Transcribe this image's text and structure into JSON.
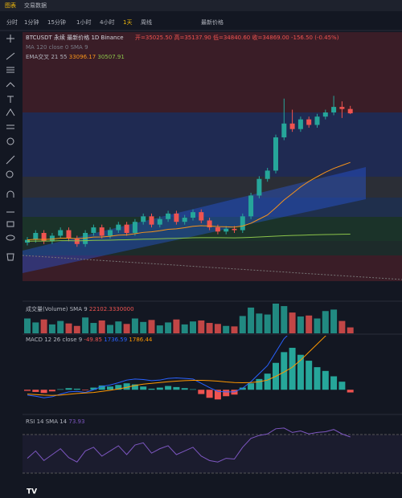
{
  "tabs": [
    "图表",
    "交易数据"
  ],
  "toolbar": [
    "分时",
    "1分钟",
    "15分钟",
    "1小时",
    "4小时",
    "1天",
    "周线"
  ],
  "price_source": "最新价格",
  "header": {
    "symbol": "BTCUSDT 永续 最新价格 1D Binance",
    "ohlc": "开=35025.50 高=35137.90 低=34840.60 收=34869.00 -156.50 (-0.45%)",
    "ma": "MA 120 close 0 SMA 9",
    "ema": "EMA交叉 21 55"
  },
  "chart_data": {
    "type": "candlestick",
    "categories": [
      null,
      null,
      null,
      null,
      null,
      null,
      null,
      null,
      null,
      null,
      null,
      null,
      null,
      null,
      null,
      null,
      null,
      null,
      null,
      null,
      null,
      null,
      null,
      null,
      null,
      null,
      null,
      null,
      null,
      null,
      null,
      null,
      null,
      null,
      null,
      null,
      null,
      null,
      null,
      null
    ],
    "open": [
      30200,
      30300,
      30550,
      30250,
      30450,
      30650,
      30350,
      30150,
      30550,
      30750,
      30450,
      30650,
      30850,
      30550,
      30950,
      31150,
      30850,
      31050,
      31250,
      30950,
      31100,
      31300,
      31000,
      30750,
      30600,
      30700,
      30650,
      31150,
      31900,
      32500,
      32800,
      34000,
      34500,
      34300,
      34650,
      34450,
      34750,
      34900,
      35100,
      35025.5
    ],
    "high": [
      30400,
      30650,
      30650,
      30550,
      30750,
      30750,
      30450,
      30650,
      30850,
      30850,
      30750,
      30950,
      30950,
      31050,
      31250,
      31250,
      31150,
      31350,
      31350,
      31200,
      31400,
      31400,
      31100,
      30850,
      30800,
      30800,
      31250,
      32000,
      32600,
      32900,
      34100,
      35400,
      35000,
      34750,
      34750,
      34850,
      35000,
      35500,
      35300,
      35137.9
    ],
    "low": [
      30100,
      30200,
      30150,
      30150,
      30350,
      30250,
      30050,
      30050,
      30450,
      30350,
      30350,
      30550,
      30450,
      30450,
      30850,
      30750,
      30750,
      30950,
      30850,
      30850,
      31000,
      30900,
      30650,
      30500,
      30500,
      30550,
      30550,
      31050,
      31800,
      32400,
      32700,
      33900,
      34200,
      34200,
      34350,
      34350,
      34650,
      34800,
      34700,
      34840.6
    ],
    "close": [
      30300,
      30550,
      30250,
      30450,
      30650,
      30350,
      30150,
      30550,
      30750,
      30450,
      30650,
      30850,
      30550,
      30950,
      31150,
      30850,
      31050,
      31250,
      30950,
      31100,
      31300,
      31000,
      30750,
      30600,
      30700,
      30650,
      31150,
      31900,
      32500,
      32800,
      34000,
      34500,
      34300,
      34650,
      34450,
      34750,
      34900,
      35100,
      35025,
      34869
    ],
    "up_color": "#26a69a",
    "down_color": "#ef5350",
    "ylim": [
      28810,
      37800
    ],
    "series": [
      {
        "color": "#f7931a",
        "values": [
          30300,
          30320,
          30315,
          30330,
          30360,
          30360,
          30345,
          30365,
          30400,
          30405,
          30430,
          30470,
          30480,
          30520,
          30570,
          30590,
          30630,
          30680,
          30700,
          30740,
          30790,
          30810,
          30800,
          30780,
          30770,
          30760,
          30800,
          30900,
          31050,
          31200,
          31460,
          31740,
          31970,
          32210,
          32410,
          32580,
          32740,
          32880,
          32990,
          33096.17
        ]
      },
      {
        "color": "#8bc34a",
        "values": [
          30250,
          30255,
          30255,
          30260,
          30270,
          30270,
          30265,
          30270,
          30280,
          30285,
          30290,
          30300,
          30305,
          30315,
          30325,
          30330,
          30340,
          30350,
          30355,
          30365,
          30375,
          30380,
          30380,
          30378,
          30376,
          30374,
          30380,
          30392,
          30404,
          30418,
          30434,
          30448,
          30458,
          30468,
          30476,
          30484,
          30491,
          30497,
          30502,
          30507.91
        ]
      }
    ],
    "volume": {
      "label": "成交量(Volume) SMA 9",
      "sma_label": "22102.3330000",
      "ylim": [
        0,
        60000
      ],
      "values": [
        30000,
        22000,
        28000,
        18000,
        25000,
        20000,
        15000,
        32000,
        21000,
        26000,
        17000,
        24000,
        19000,
        30000,
        23000,
        27000,
        16000,
        22000,
        28000,
        18000,
        24000,
        26000,
        21000,
        19000,
        15000,
        14000,
        35000,
        52000,
        40000,
        38000,
        60000,
        55000,
        42000,
        34000,
        36000,
        30000,
        45000,
        48000,
        25000,
        12000
      ]
    },
    "macd": {
      "label": "MACD 12 26 close 9",
      "ylim": [
        -400,
        900
      ],
      "hist_up_color": "#26a69a",
      "hist_down_color": "#ef5350",
      "hist": [
        -20,
        -40,
        -60,
        -30,
        10,
        30,
        20,
        -10,
        40,
        80,
        60,
        90,
        120,
        100,
        60,
        20,
        40,
        70,
        50,
        30,
        10,
        -80,
        -150,
        -180,
        -120,
        -90,
        40,
        120,
        200,
        300,
        500,
        700,
        780,
        650,
        540,
        420,
        350,
        250,
        150,
        -49.85
      ],
      "macd_color": "#2962ff",
      "signal_color": "#ff9800",
      "macd": [
        -100,
        -120,
        -150,
        -130,
        -80,
        -40,
        -30,
        -50,
        0,
        60,
        90,
        130,
        180,
        200,
        190,
        170,
        180,
        210,
        220,
        210,
        200,
        120,
        40,
        -30,
        -40,
        -40,
        30,
        150,
        300,
        450,
        700,
        950,
        1100,
        1200,
        1260,
        1300,
        1320,
        1350,
        1500,
        1736.59
      ],
      "signal": [
        -80,
        -90,
        -100,
        -105,
        -100,
        -85,
        -70,
        -60,
        -50,
        -30,
        -10,
        15,
        45,
        80,
        105,
        120,
        135,
        150,
        160,
        170,
        175,
        175,
        170,
        160,
        145,
        135,
        130,
        135,
        150,
        180,
        250,
        330,
        420,
        550,
        700,
        850,
        1000,
        1150,
        1350,
        1786.44
      ]
    },
    "rsi": {
      "label": "RSI 14 SMA 14",
      "color": "#7e57c2",
      "ylim": [
        0,
        100
      ],
      "values": [
        45,
        55,
        42,
        50,
        58,
        46,
        40,
        55,
        60,
        48,
        55,
        62,
        50,
        63,
        66,
        52,
        58,
        62,
        50,
        55,
        60,
        48,
        42,
        40,
        45,
        44,
        60,
        72,
        76,
        78,
        85,
        86,
        80,
        82,
        78,
        80,
        81,
        84,
        78,
        73.93
      ]
    }
  }
}
